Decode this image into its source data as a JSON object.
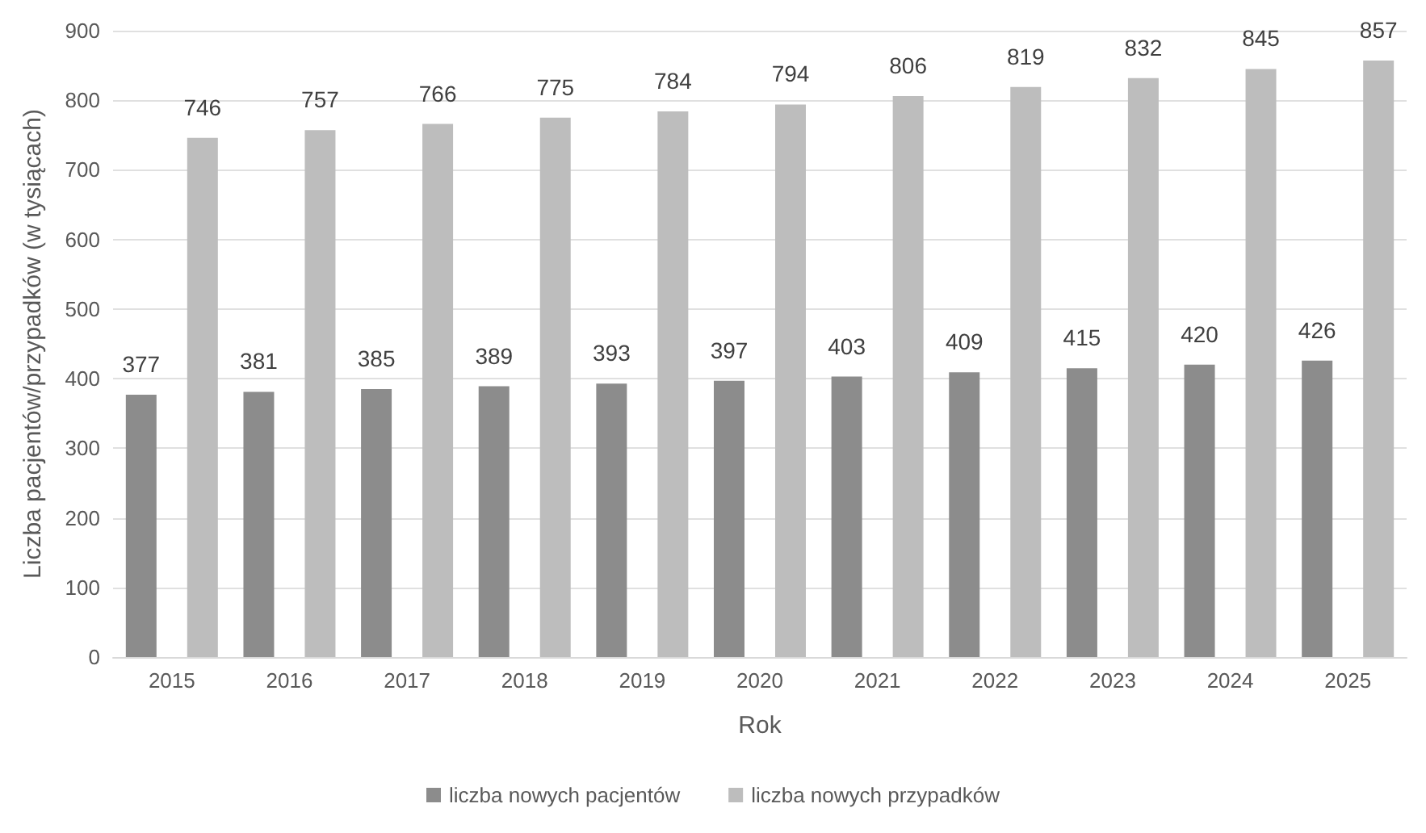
{
  "chart_data": {
    "type": "bar",
    "xlabel": "Rok",
    "ylabel": "Liczba pacjentów/przypadków (w tysiącach)",
    "categories": [
      "2015",
      "2016",
      "2017",
      "2018",
      "2019",
      "2020",
      "2021",
      "2022",
      "2023",
      "2024",
      "2025"
    ],
    "series": [
      {
        "name": "liczba nowych pacjentów",
        "color": "#8c8c8c",
        "values": [
          377,
          381,
          385,
          389,
          393,
          397,
          403,
          409,
          415,
          420,
          426
        ]
      },
      {
        "name": "liczba nowych przypadków",
        "color": "#bdbdbd",
        "values": [
          746,
          757,
          766,
          775,
          784,
          794,
          806,
          819,
          832,
          845,
          857
        ]
      }
    ],
    "ylim": [
      0,
      900
    ],
    "yticks": [
      0,
      100,
      200,
      300,
      400,
      500,
      600,
      700,
      800,
      900
    ],
    "grid": "y",
    "legend": "bottom",
    "data_labels": true
  }
}
